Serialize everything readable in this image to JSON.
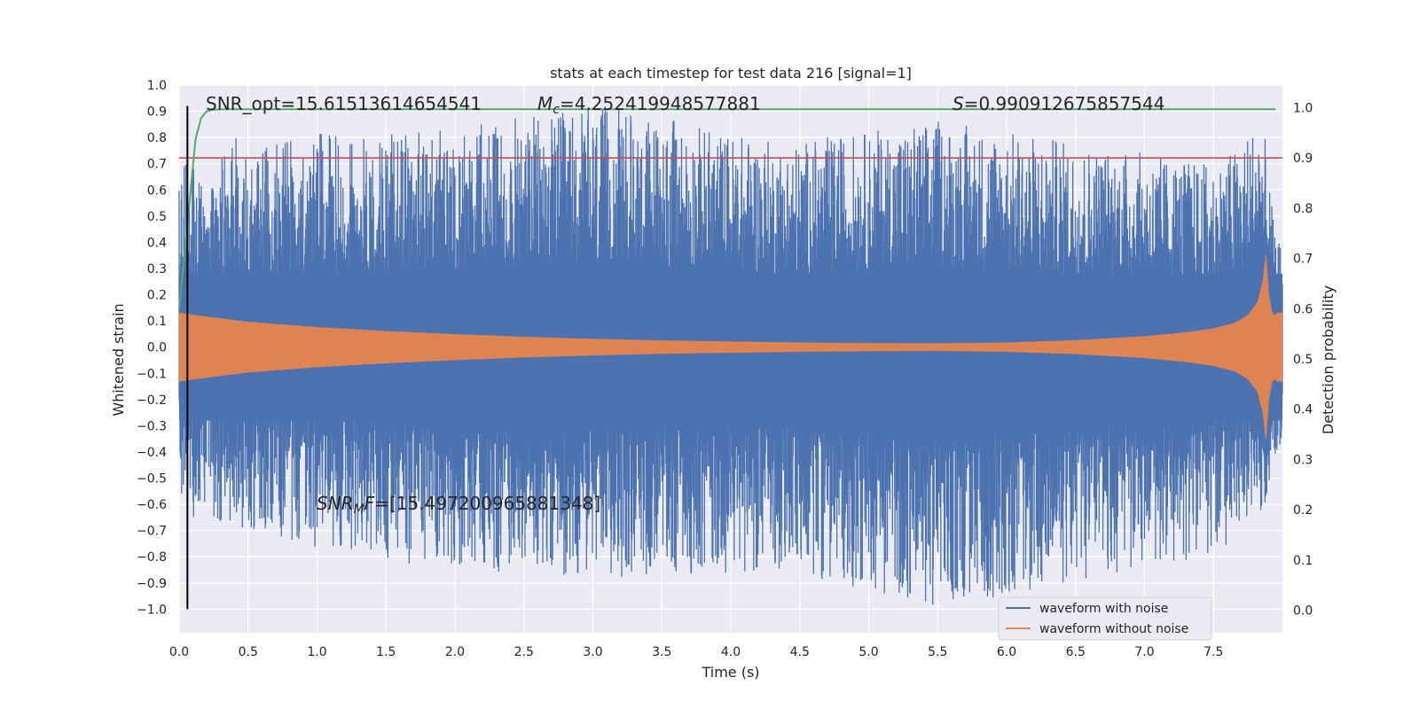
{
  "chart_data": {
    "type": "line",
    "title": "stats at each timestep for test data 216 [signal=1]",
    "xlabel": "Time (s)",
    "ylabel": "Whitened strain",
    "y2label": "Detection probability",
    "xlim": [
      0.0,
      8.0
    ],
    "ylim": [
      -1.09,
      1.0
    ],
    "y2lim": [
      -0.045,
      1.045
    ],
    "x_ticks": [
      0.0,
      0.5,
      1.0,
      1.5,
      2.0,
      2.5,
      3.0,
      3.5,
      4.0,
      4.5,
      5.0,
      5.5,
      6.0,
      6.5,
      7.0,
      7.5
    ],
    "y_ticks": [
      -1.0,
      -0.9,
      -0.8,
      -0.7,
      -0.6,
      -0.5,
      -0.4,
      -0.3,
      -0.2,
      -0.1,
      0.0,
      0.1,
      0.2,
      0.3,
      0.4,
      0.5,
      0.6,
      0.7,
      0.8,
      0.9,
      1.0
    ],
    "y2_ticks": [
      0.0,
      0.1,
      0.2,
      0.3,
      0.4,
      0.5,
      0.6,
      0.7,
      0.8,
      0.9,
      1.0
    ],
    "grid": true,
    "legend_position": "lower-right",
    "colors": {
      "noisy": "#4c72b0",
      "clean": "#dd8452",
      "probability": "#55a868",
      "threshold": "#c44e52",
      "marker": "#000000",
      "background": "#eaeaf2"
    },
    "series": [
      {
        "name": "waveform with noise",
        "envelope_x": [
          0.0,
          0.06,
          0.2,
          0.35,
          1.82,
          3.09,
          4.4,
          5.51,
          7.5,
          7.7,
          7.85,
          7.95,
          8.0
        ],
        "envelope_upper": [
          0.6,
          0.75,
          0.62,
          0.8,
          0.83,
          0.92,
          0.78,
          0.87,
          0.7,
          0.78,
          0.92,
          0.4,
          0.4
        ],
        "envelope_lower": [
          -0.55,
          -0.68,
          -0.62,
          -0.7,
          -0.85,
          -0.88,
          -0.85,
          -1.0,
          -0.8,
          -0.7,
          -0.65,
          -0.45,
          -0.45
        ]
      },
      {
        "name": "waveform without noise",
        "x": [
          0.0,
          0.2,
          0.5,
          1.0,
          1.5,
          2.0,
          2.5,
          3.0,
          3.5,
          4.0,
          4.5,
          5.0,
          5.5,
          6.0,
          6.5,
          7.0,
          7.3,
          7.5,
          7.65,
          7.75,
          7.82,
          7.86,
          7.88,
          7.9,
          7.93,
          7.96,
          8.0
        ],
        "amplitude": [
          0.13,
          0.115,
          0.095,
          0.075,
          0.06,
          0.048,
          0.038,
          0.03,
          0.024,
          0.02,
          0.016,
          0.014,
          0.013,
          0.016,
          0.025,
          0.04,
          0.055,
          0.07,
          0.09,
          0.12,
          0.17,
          0.25,
          0.35,
          0.2,
          0.11,
          0.13,
          0.13
        ]
      },
      {
        "name": "detection probability",
        "axis": "right",
        "x": [
          0.0,
          0.06,
          0.12,
          0.17,
          0.22,
          0.3,
          0.4,
          7.95
        ],
        "y": [
          0.6,
          0.77,
          0.94,
          0.99,
          0.995,
          0.997,
          0.997,
          0.997
        ]
      }
    ],
    "threshold": {
      "axis": "right",
      "y": 0.9
    },
    "marker_line": {
      "x": 0.06,
      "y_from": -1.0,
      "y_to": 0.92
    },
    "annotations": {
      "snr_opt": "SNR_opt=15.61513614654541",
      "mc_symbol": "M",
      "mc_sub": "c",
      "mc_value": "=4.252419948577881",
      "s_symbol": "S",
      "s_value": "=0.990912675857544",
      "snr_mf_symbol": "SNR",
      "snr_mf_sub": "M",
      "snr_mf_tail": "F",
      "snr_mf_value": "=[15.497200965881348]"
    },
    "legend": [
      "waveform with noise",
      "waveform without noise"
    ]
  }
}
